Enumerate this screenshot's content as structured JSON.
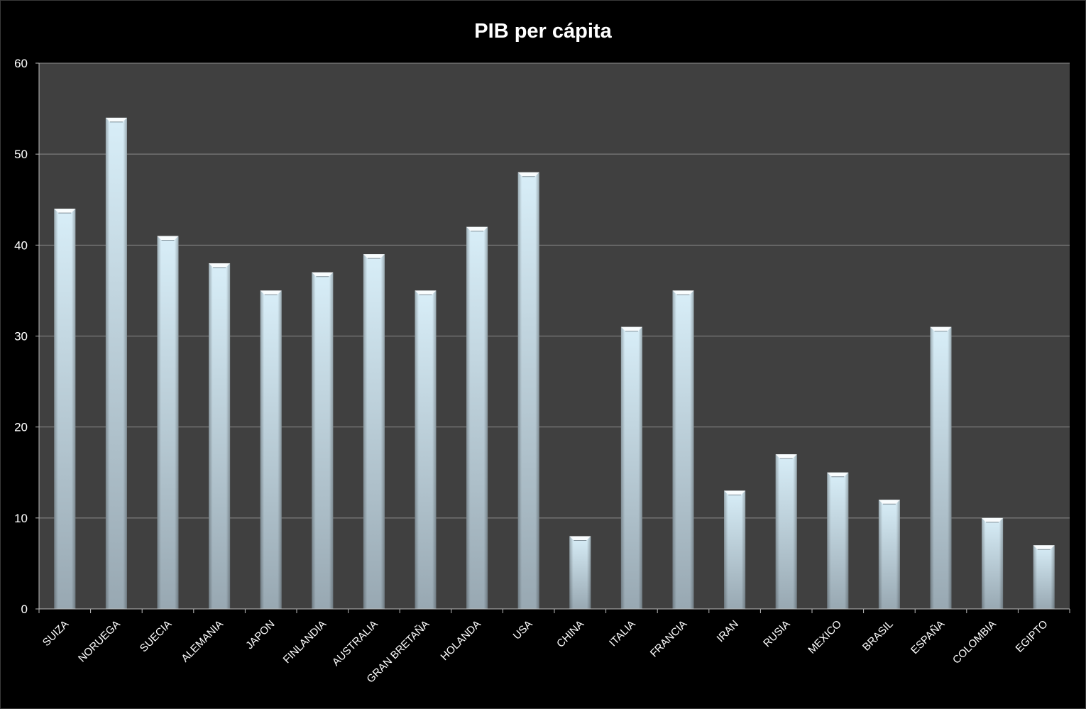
{
  "chart_data": {
    "type": "bar",
    "title": "PIB per cápita",
    "xlabel": "",
    "ylabel": "",
    "ylim": [
      0,
      60
    ],
    "yticks": [
      0,
      10,
      20,
      30,
      40,
      50,
      60
    ],
    "grid": true,
    "legend": "none",
    "categories": [
      "SUIZA",
      "NORUEGA",
      "SUECIA",
      "ALEMANIA",
      "JAPON",
      "FINLANDIA",
      "AUSTRALIA",
      "GRAN BRETAÑA",
      "HOLANDA",
      "USA",
      "CHINA",
      "ITALIA",
      "FRANCIA",
      "IRAN",
      "RUSIA",
      "MEXICO",
      "BRASIL",
      "ESPAÑA",
      "COLOMBIA",
      "EGIPTO"
    ],
    "values": [
      44,
      54,
      41,
      38,
      35,
      37,
      39,
      35,
      42,
      48,
      8,
      31,
      35,
      13,
      17,
      15,
      12,
      31,
      10,
      7
    ],
    "colors": {
      "background": "#000000",
      "plot_area": "#404040",
      "gridline": "#8a8a8a",
      "bar_top": "#d8eef8",
      "bar_bottom": "#98a8b2",
      "text": "#ffffff"
    }
  }
}
